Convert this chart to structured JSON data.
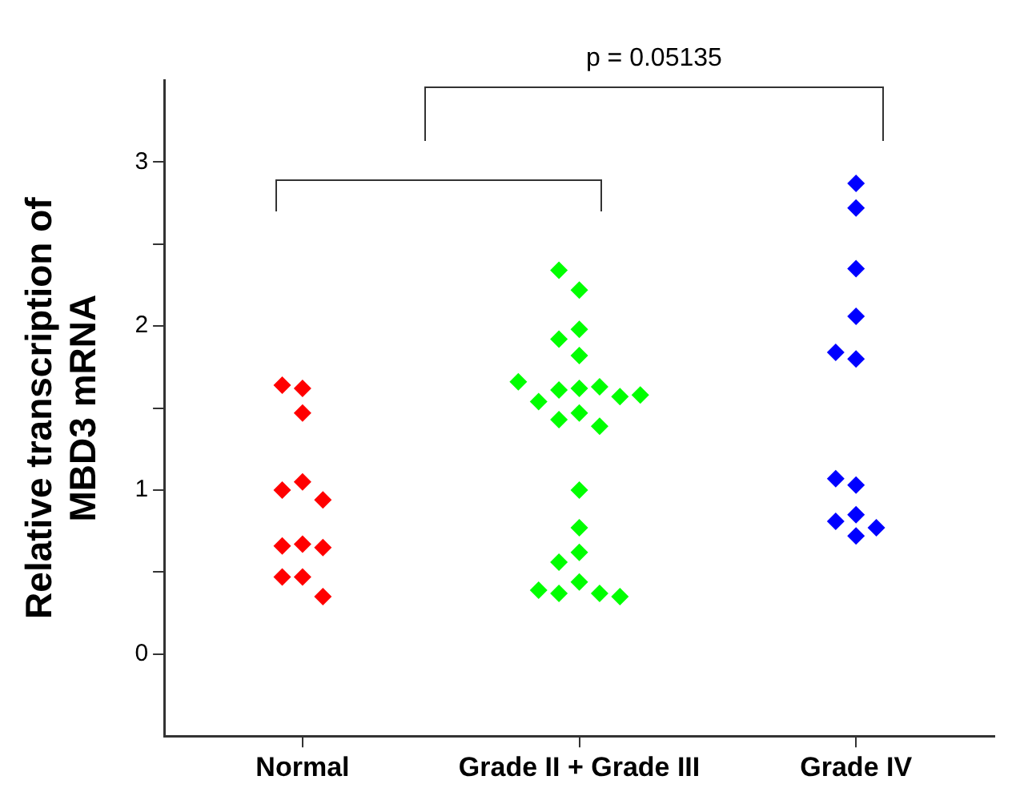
{
  "chart_data": {
    "type": "scatter",
    "ylabel": "Relative transcription of\nMBD3 mRNA",
    "annotations": [
      "p = 0.05135"
    ],
    "categories": [
      "Normal",
      "Grade II + Grade III",
      "Grade IV"
    ],
    "ylim": [
      -0.5,
      3.5
    ],
    "yticks": [
      0,
      {
        "value": 0.5,
        "label": null
      },
      1,
      {
        "value": 1.5,
        "label": null
      },
      2,
      {
        "value": 2.5,
        "label": null
      },
      3
    ],
    "marker": "diamond",
    "grid": false,
    "legend": false,
    "series": [
      {
        "color": "#ff0000",
        "x": [
          "Normal",
          "Normal",
          "Normal",
          "Normal",
          "Normal",
          "Normal",
          "Normal",
          "Normal",
          "Normal",
          "Normal",
          "Normal",
          "Normal"
        ],
        "values": [
          1.62,
          1.64,
          1.47,
          1.05,
          1.0,
          0.94,
          0.67,
          0.66,
          0.65,
          0.47,
          0.47,
          0.35
        ]
      },
      {
        "color": "#00ff00",
        "x": [
          "Grade II + Grade III",
          "Grade II + Grade III",
          "Grade II + Grade III",
          "Grade II + Grade III",
          "Grade II + Grade III",
          "Grade II + Grade III",
          "Grade II + Grade III",
          "Grade II + Grade III",
          "Grade II + Grade III",
          "Grade II + Grade III",
          "Grade II + Grade III",
          "Grade II + Grade III",
          "Grade II + Grade III",
          "Grade II + Grade III",
          "Grade II + Grade III",
          "Grade II + Grade III",
          "Grade II + Grade III",
          "Grade II + Grade III",
          "Grade II + Grade III",
          "Grade II + Grade III",
          "Grade II + Grade III",
          "Grade II + Grade III",
          "Grade II + Grade III",
          "Grade II + Grade III"
        ],
        "values": [
          1.62,
          1.61,
          1.82,
          1.98,
          2.22,
          2.34,
          1.92,
          1.63,
          1.54,
          1.47,
          1.57,
          1.66,
          1.58,
          1.43,
          1.39,
          1.0,
          0.77,
          0.62,
          0.56,
          0.44,
          0.37,
          0.37,
          0.39,
          0.35
        ]
      },
      {
        "color": "#0000ff",
        "x": [
          "Grade IV",
          "Grade IV",
          "Grade IV",
          "Grade IV",
          "Grade IV",
          "Grade IV",
          "Grade IV",
          "Grade IV",
          "Grade IV",
          "Grade IV",
          "Grade IV",
          "Grade IV"
        ],
        "values": [
          2.72,
          2.87,
          2.35,
          2.06,
          1.8,
          1.84,
          1.03,
          1.07,
          0.85,
          0.81,
          0.77,
          0.72
        ]
      }
    ]
  }
}
